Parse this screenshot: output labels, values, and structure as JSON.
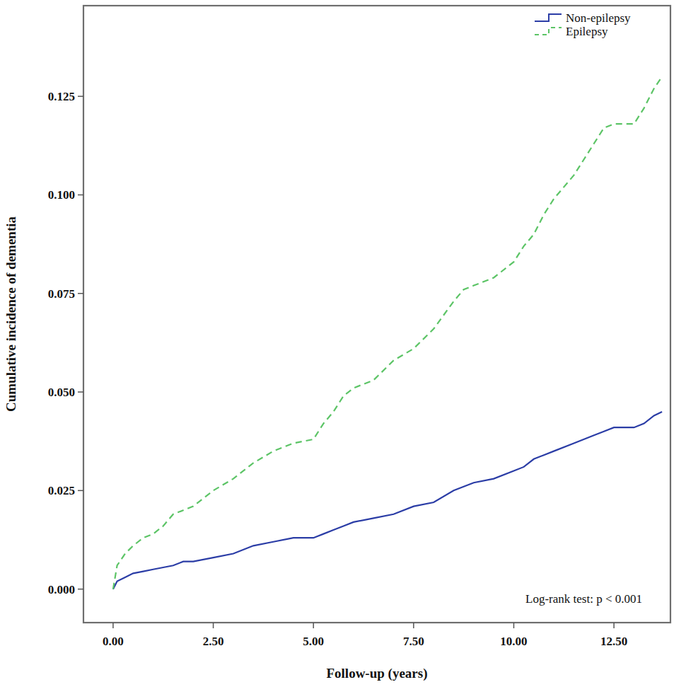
{
  "chart_data": {
    "type": "line",
    "x_label": "Follow-up (years)",
    "y_label": "Cumulative incidence of dementia",
    "annotation": "Log-rank test: p < 0.001",
    "legend": "upper-right",
    "grid": false,
    "xlim": [
      -0.74,
      13.91
    ],
    "ylim": [
      -0.0085,
      0.148
    ],
    "xticks": [
      {
        "value": 0,
        "label": "0.00"
      },
      {
        "value": 2.5,
        "label": "2.50"
      },
      {
        "value": 5,
        "label": "5.00"
      },
      {
        "value": 7.5,
        "label": "7.50"
      },
      {
        "value": 10,
        "label": "10.00"
      },
      {
        "value": 12.5,
        "label": "12.50"
      }
    ],
    "yticks": [
      {
        "value": 0,
        "label": "0.000"
      },
      {
        "value": 0.025,
        "label": "0.025"
      },
      {
        "value": 0.05,
        "label": "0.050"
      },
      {
        "value": 0.075,
        "label": "0.075"
      },
      {
        "value": 0.1,
        "label": "0.100"
      },
      {
        "value": 0.125,
        "label": "0.125"
      }
    ],
    "x": [
      0,
      0.1,
      0.3,
      0.5,
      0.75,
      1,
      1.25,
      1.5,
      1.75,
      2,
      2.5,
      3,
      3.5,
      4,
      4.5,
      5,
      5.25,
      5.5,
      5.75,
      6,
      6.5,
      7,
      7.5,
      8,
      8.5,
      8.75,
      9,
      9.5,
      10,
      10.25,
      10.5,
      10.75,
      11,
      11.5,
      12,
      12.25,
      12.5,
      13,
      13.25,
      13.5,
      13.7
    ],
    "series": [
      {
        "name": "Non-epilepsy",
        "color": "#2b3da6",
        "line_style": "solid",
        "values": [
          0,
          0.002,
          0.003,
          0.004,
          0.0045,
          0.005,
          0.0055,
          0.006,
          0.007,
          0.007,
          0.008,
          0.009,
          0.011,
          0.012,
          0.013,
          0.013,
          0.014,
          0.015,
          0.016,
          0.017,
          0.018,
          0.019,
          0.021,
          0.022,
          0.025,
          0.026,
          0.027,
          0.028,
          0.03,
          0.031,
          0.033,
          0.034,
          0.035,
          0.037,
          0.039,
          0.04,
          0.041,
          0.041,
          0.042,
          0.044,
          0.045
        ]
      },
      {
        "name": "Epilepsy",
        "color": "#5cc466",
        "line_style": "dashed",
        "values": [
          0,
          0.006,
          0.009,
          0.011,
          0.013,
          0.014,
          0.016,
          0.019,
          0.02,
          0.021,
          0.025,
          0.028,
          0.032,
          0.035,
          0.037,
          0.038,
          0.042,
          0.045,
          0.049,
          0.051,
          0.053,
          0.058,
          0.061,
          0.066,
          0.073,
          0.076,
          0.077,
          0.079,
          0.083,
          0.087,
          0.09,
          0.095,
          0.099,
          0.105,
          0.113,
          0.117,
          0.118,
          0.118,
          0.122,
          0.127,
          0.13
        ]
      }
    ]
  }
}
